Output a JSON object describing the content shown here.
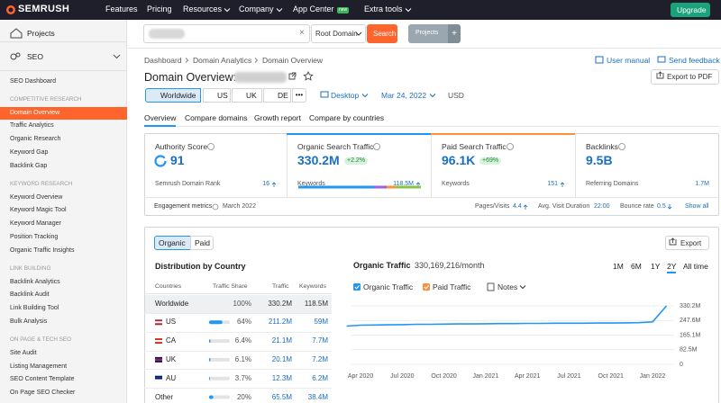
{
  "nav": {
    "logo": "SEMRUSH",
    "items": [
      "Features",
      "Pricing",
      "Resources",
      "Company",
      "App Center",
      "Extra tools"
    ],
    "dropdowns": [
      false,
      false,
      true,
      true,
      false,
      true
    ],
    "badge": "new",
    "upgrade": "Upgrade"
  },
  "sidebar": {
    "projects": "Projects",
    "seo": "SEO",
    "dashboard": "SEO Dashboard",
    "active": [
      0,
      0
    ],
    "groups": [
      {
        "title": "COMPETITIVE RESEARCH",
        "items": [
          "Domain Overview",
          "Traffic Analytics",
          "Organic Research",
          "Keyword Gap",
          "Backlink Gap"
        ]
      },
      {
        "title": "KEYWORD RESEARCH",
        "items": [
          "Keyword Overview",
          "Keyword Magic Tool",
          "Keyword Manager",
          "Position Tracking",
          "Organic Traffic Insights"
        ]
      },
      {
        "title": "LINK BUILDING",
        "items": [
          "Backlink Analytics",
          "Backlink Audit",
          "Link Building Tool",
          "Bulk Analysis"
        ]
      },
      {
        "title": "ON PAGE & TECH SEO",
        "items": [
          "Site Audit",
          "Listing Management",
          "SEO Content Template",
          "On Page SEO Checker"
        ]
      }
    ]
  },
  "search": {
    "mode": "Root Domain",
    "button": "Search",
    "projects": "Projects"
  },
  "breadcrumb": [
    "Dashboard",
    "Domain Analytics",
    "Domain Overview"
  ],
  "links": [
    "User manual",
    "Send feedback"
  ],
  "title": "Domain Overview:",
  "export_pdf": "Export to PDF",
  "filters": {
    "databases": [
      "Worldwide",
      "US",
      "UK",
      "DE"
    ],
    "selected_database": 0,
    "device": "Desktop",
    "date": "Mar 24, 2022",
    "currency": "USD"
  },
  "tabs": [
    "Overview",
    "Compare domains",
    "Growth report",
    "Compare by countries"
  ],
  "active_tab": 0,
  "metrics": [
    {
      "title": "Authority Score",
      "value": "91",
      "sub_label": "Semrush Domain Rank",
      "sub_value": "16"
    },
    {
      "title": "Organic Search Traffic",
      "value": "330.2M",
      "badge": "+2.2%",
      "sub_label": "Keywords",
      "sub_value": "118.5M"
    },
    {
      "title": "Paid Search Traffic",
      "value": "96.1K",
      "badge": "+69%",
      "sub_label": "Keywords",
      "sub_value": "151"
    },
    {
      "title": "Backlinks",
      "value": "9.5B",
      "sub_label": "Referring Domains",
      "sub_value": "1.7M"
    }
  ],
  "engagement": {
    "label": "Engagement metrics",
    "date": "March 2022",
    "pages_label": "Pages/Visits",
    "pages": "4.4",
    "duration_label": "Avg. Visit Duration",
    "duration": "22:00",
    "bounce_label": "Bounce rate",
    "bounce": "0.5",
    "show_all": "Show all"
  },
  "lower": {
    "toggle": [
      "Organic",
      "Paid"
    ],
    "active_toggle": 0,
    "export": "Export",
    "dist_title": "Distribution by Country",
    "columns": [
      "Countries",
      "Traffic Share",
      "Traffic",
      "Keywords"
    ],
    "rows": [
      {
        "country": "Worldwide",
        "share": 100,
        "share_label": "100%",
        "traffic": "330.2M",
        "keywords": "118.5M"
      },
      {
        "country": "US",
        "share": 64,
        "share_label": "64%",
        "traffic": "211.2M",
        "keywords": "59M"
      },
      {
        "country": "CA",
        "share": 6.4,
        "share_label": "6.4%",
        "traffic": "21.1M",
        "keywords": "7.7M"
      },
      {
        "country": "UK",
        "share": 6.1,
        "share_label": "6.1%",
        "traffic": "20.1M",
        "keywords": "7.2M"
      },
      {
        "country": "AU",
        "share": 3.7,
        "share_label": "3.7%",
        "traffic": "12.3M",
        "keywords": "6.2M"
      },
      {
        "country": "Other",
        "share": 20,
        "share_label": "20%",
        "traffic": "65.5M",
        "keywords": "38.4M"
      }
    ]
  },
  "chart_data": {
    "type": "line",
    "title": "Organic Traffic",
    "subtitle": "330,169,216/month",
    "periods": [
      "1M",
      "6M",
      "1Y",
      "2Y",
      "All time"
    ],
    "active_period": 3,
    "notes": "Notes",
    "categories": [
      null,
      "Apr 2020",
      null,
      null,
      "Jul 2020",
      null,
      null,
      "Oct 2020",
      null,
      null,
      "Jan 2021",
      null,
      null,
      "Apr 2021",
      null,
      null,
      "Jul 2021",
      null,
      null,
      "Oct 2021",
      null,
      null,
      "Jan 2022",
      null
    ],
    "series": [
      {
        "name": "Organic Traffic",
        "color": "#2196f3",
        "values": [
          216000000,
          221000000,
          222000000,
          223000000,
          224000000,
          226000000,
          226000000,
          227000000,
          228000000,
          228000000,
          229000000,
          230000000,
          230000000,
          231000000,
          231000000,
          232000000,
          232000000,
          232000000,
          233000000,
          233000000,
          234000000,
          235000000,
          240000000,
          330000000
        ]
      }
    ],
    "extra_legend": {
      "name": "Paid Traffic",
      "color": "#ff8f3a"
    },
    "ylim": [
      0,
      330200000
    ],
    "yticks": [
      {
        "value": 330200000,
        "label": "330.2M"
      },
      {
        "value": 247600000,
        "label": "247.6M"
      },
      {
        "value": 165100000,
        "label": "165.1M"
      },
      {
        "value": 82500000,
        "label": "82.5M"
      },
      0
    ],
    "grid": true
  }
}
